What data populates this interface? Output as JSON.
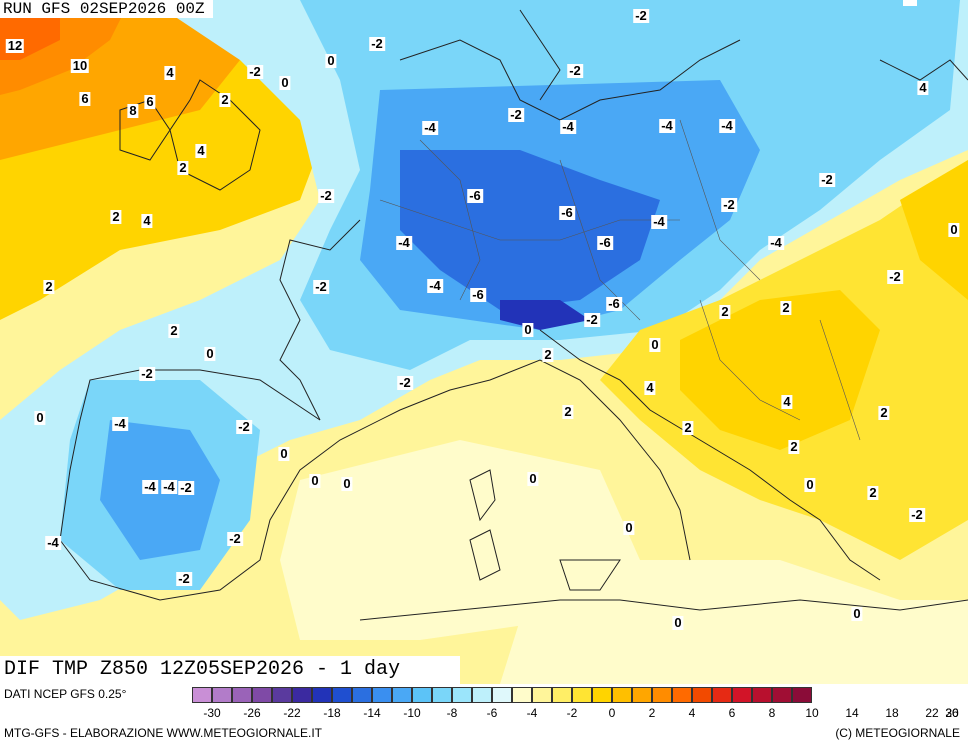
{
  "run_title": "RUN GFS 02SEP2026 00Z",
  "product_title": "DIF TMP Z850 12Z05SEP2026 - 1 day",
  "data_source": "DATI NCEP GFS 0.25°",
  "credits_left": "MTG-GFS - ELABORAZIONE WWW.METEOGIORNALE.IT",
  "credits_right": "(C) METEOGIORNALE",
  "colorbar": {
    "colors": [
      "#c98fd6",
      "#b27cc9",
      "#9a63b8",
      "#7f4aa6",
      "#5a3a9e",
      "#3b2aa0",
      "#2233b8",
      "#1f4fd0",
      "#2b6fe0",
      "#3a8ff0",
      "#4aa8f5",
      "#5cc3f7",
      "#7ad6f9",
      "#9be5fb",
      "#bef0fb",
      "#dff8fb",
      "#fffccb",
      "#fff59a",
      "#ffee66",
      "#ffe433",
      "#ffd400",
      "#ffbf00",
      "#ffa600",
      "#ff8c00",
      "#ff6a00",
      "#f24a00",
      "#e62a14",
      "#d21428",
      "#b8102e",
      "#a00e34",
      "#8a0c38"
    ],
    "ticks": [
      "-30",
      "-26",
      "-22",
      "-18",
      "-14",
      "-10",
      "-8",
      "-6",
      "-4",
      "-2",
      "0",
      "2",
      "4",
      "6",
      "8",
      "10",
      "14",
      "18",
      "22",
      "26",
      "30"
    ]
  },
  "map_labels": [
    "-2",
    "12",
    "10",
    "4",
    "-2",
    "-2",
    "0",
    "-2",
    "0",
    "6",
    "6",
    "8",
    "2",
    "-2",
    "-4",
    "-4",
    "-4",
    "-4",
    "-2",
    "4",
    "2",
    "-2",
    "-4",
    "-6",
    "-6",
    "-4",
    "-2",
    "2",
    "4",
    "2",
    "-2",
    "-4",
    "-6",
    "-2",
    "2",
    "0",
    "-2",
    "-4",
    "-6",
    "-6",
    "-4",
    "-2",
    "4",
    "0",
    "2",
    "2",
    "0",
    "-2",
    "2",
    "0",
    "4",
    "4",
    "-2",
    "-4",
    "-2",
    "0",
    "2",
    "2",
    "0",
    "0",
    "0",
    "-4",
    "-4",
    "-2",
    "2",
    "-2",
    "0",
    "2",
    "-2",
    "0",
    "0",
    "2",
    "0",
    "0"
  ],
  "map_type": "temperature anomaly 850 hPa"
}
